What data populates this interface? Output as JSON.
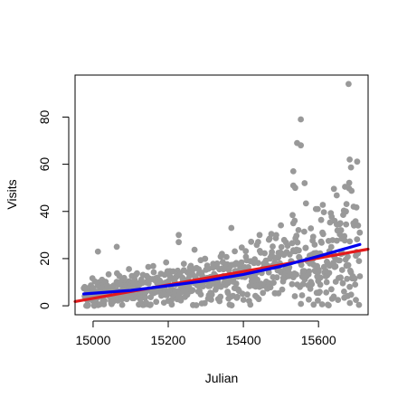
{
  "chart_data": {
    "type": "scatter",
    "title": "",
    "xlabel": "Julian",
    "ylabel": "Visits",
    "xlim": [
      14952,
      15732
    ],
    "ylim": [
      -3.8,
      97.8
    ],
    "x_ticks": [
      15000,
      15200,
      15400,
      15600
    ],
    "y_ticks": [
      0,
      20,
      40,
      60,
      80
    ],
    "grid": false,
    "legend": "none",
    "point_color": "#999999",
    "x_range_of_points": [
      14975,
      15710
    ],
    "notable_points": [
      {
        "x": 15680,
        "y": 94
      },
      {
        "x": 15553,
        "y": 79
      },
      {
        "x": 15543,
        "y": 69
      },
      {
        "x": 15553,
        "y": 68
      },
      {
        "x": 15683,
        "y": 62
      },
      {
        "x": 15533,
        "y": 57
      },
      {
        "x": 15563,
        "y": 52
      },
      {
        "x": 15533,
        "y": 51
      },
      {
        "x": 15538,
        "y": 50
      },
      {
        "x": 15593,
        "y": 41
      },
      {
        "x": 15598,
        "y": 41
      },
      {
        "x": 15673,
        "y": 40
      },
      {
        "x": 15643,
        "y": 36
      },
      {
        "x": 15658,
        "y": 35
      },
      {
        "x": 15693,
        "y": 35
      },
      {
        "x": 15533,
        "y": 35
      },
      {
        "x": 15368,
        "y": 33
      },
      {
        "x": 15228,
        "y": 30
      },
      {
        "x": 15443,
        "y": 30
      },
      {
        "x": 15468,
        "y": 28
      },
      {
        "x": 15228,
        "y": 27
      },
      {
        "x": 15063,
        "y": 25
      },
      {
        "x": 15013,
        "y": 23
      },
      {
        "x": 15683,
        "y": 8
      },
      {
        "x": 15668,
        "y": 6
      },
      {
        "x": 14985,
        "y": 0
      },
      {
        "x": 15003,
        "y": 0
      }
    ],
    "fits": [
      {
        "type": "linear",
        "color": "#e31a1c",
        "points": [
          [
            14952,
            1.8
          ],
          [
            15732,
            24.0
          ]
        ]
      },
      {
        "type": "smooth",
        "color": "#0000ee",
        "points": [
          [
            14975,
            5.0
          ],
          [
            15100,
            6.5
          ],
          [
            15200,
            8.5
          ],
          [
            15300,
            10.6
          ],
          [
            15400,
            13.3
          ],
          [
            15500,
            16.7
          ],
          [
            15600,
            21.0
          ],
          [
            15710,
            26.0
          ]
        ]
      }
    ]
  }
}
